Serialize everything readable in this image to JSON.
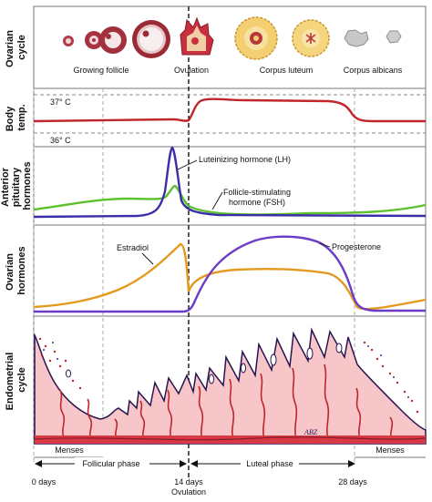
{
  "sections": {
    "ovarian": {
      "label_line1": "Ovarian",
      "label_line2": "cycle"
    },
    "temp": {
      "label_line1": "Body",
      "label_line2": "temp."
    },
    "pituitary": {
      "label_line1": "Anterior",
      "label_line2": "pituitary",
      "label_line3": "hormones"
    },
    "ovarian_hormones": {
      "label_line1": "Ovarian",
      "label_line2": "hormones"
    },
    "endometrial": {
      "label_line1": "Endometrial",
      "label_line2": "cycle"
    }
  },
  "ovarian_stage_labels": {
    "growing_follicle": "Growing follicle",
    "ovulation": "Ovulation",
    "corpus_luteum": "Corpus luteum",
    "corpus_albicans": "Corpus albicans"
  },
  "temperature_labels": {
    "high": "37° C",
    "low": "36° C"
  },
  "hormone_labels": {
    "lh": "Luteinizing hormone (LH)",
    "fsh_line1": "Follicle-stimulating",
    "fsh_line2": "hormone (FSH)",
    "estradiol": "Estradiol",
    "progesterone": "Progesterone"
  },
  "phase_labels": {
    "menses_start": "Menses",
    "follicular": "Follicular phase",
    "luteal": "Luteal phase",
    "menses_end": "Menses"
  },
  "day_labels": {
    "day0": "0 days",
    "day14": "14 days",
    "day14_sub": "Ovulation",
    "day28": "28 days"
  },
  "signature": "ABZ",
  "colors": {
    "lh": "#3a2fa8",
    "fsh": "#5cc12c",
    "estradiol": "#e39a1e",
    "progesterone": "#6a3cc7",
    "temperature": "#c0262b",
    "endometrium": "#f6c6c9",
    "endometrium_outline": "#2a1450",
    "vessels": "#c0262b"
  }
}
